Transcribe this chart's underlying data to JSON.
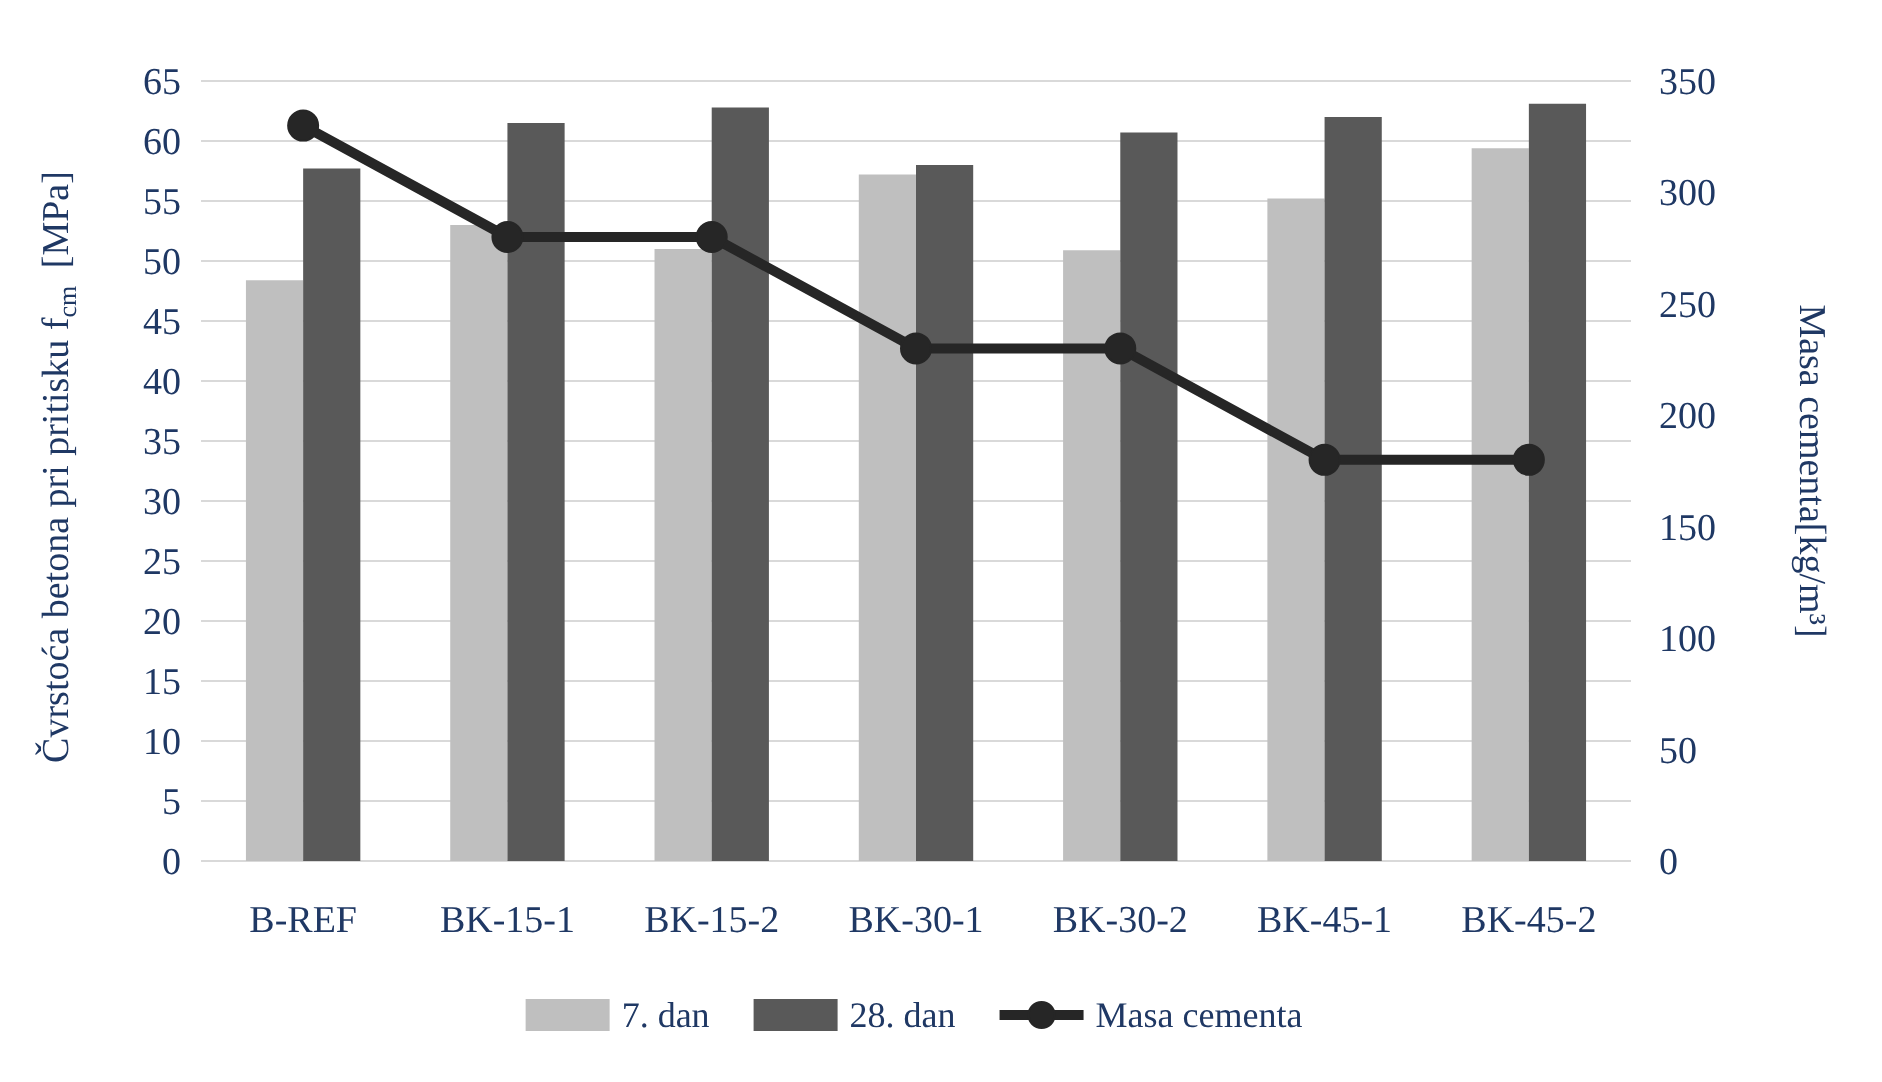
{
  "chart_data": {
    "type": "bar",
    "ylabel": "Čvrstoća betona pri pritisku f$_{cm}$ [MPa]",
    "y2label": "Masa cementa[kg/m³]",
    "categories": [
      "B-REF",
      "BK-15-1",
      "BK-15-2",
      "BK-30-1",
      "BK-30-2",
      "BK-45-1",
      "BK-45-2"
    ],
    "series": [
      {
        "name": "7. dan",
        "color": "#bfbfbf",
        "values": [
          48.4,
          53.0,
          51.0,
          57.2,
          50.9,
          55.2,
          59.4
        ]
      },
      {
        "name": "28. dan",
        "color": "#595959",
        "values": [
          57.7,
          61.5,
          62.8,
          58.0,
          60.7,
          62.0,
          63.1
        ]
      },
      {
        "name": "Masa cementa",
        "type": "line",
        "axis": "y2",
        "color": "#262626",
        "marker": "circle",
        "values": [
          330,
          280,
          280,
          230,
          230,
          180,
          180
        ]
      }
    ],
    "ylim": [
      0,
      65
    ],
    "yticks": [
      0,
      5,
      10,
      15,
      20,
      25,
      30,
      35,
      40,
      45,
      50,
      55,
      60,
      65
    ],
    "y2lim": [
      0,
      350
    ],
    "y2ticks": [
      0,
      50,
      100,
      150,
      200,
      250,
      300,
      350
    ],
    "grid": "y",
    "legend": "bottom"
  }
}
